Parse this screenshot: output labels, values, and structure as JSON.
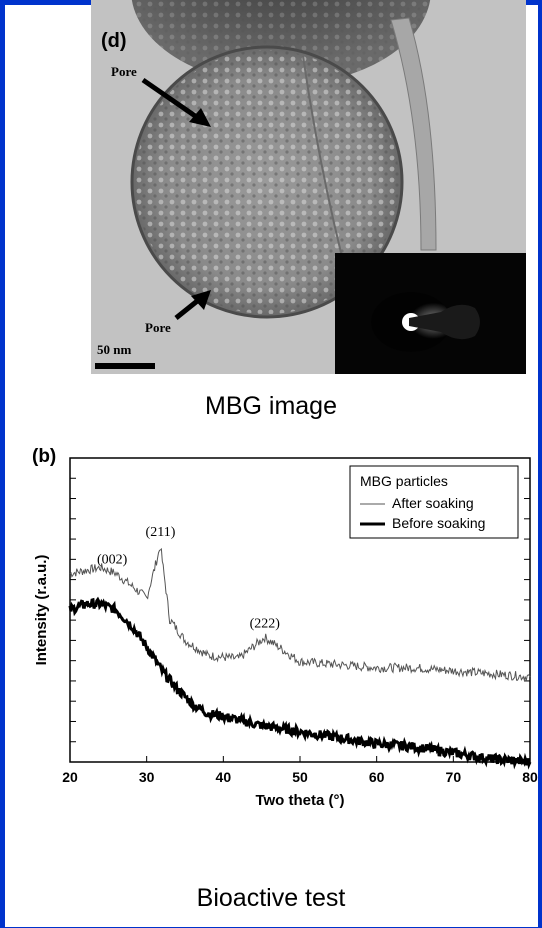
{
  "figure_top": {
    "panel_label": "(d)",
    "pore_label_top": "Pore",
    "pore_label_bottom": "Pore",
    "scale_bar": "50 nm",
    "caption": "MBG image"
  },
  "figure_bottom": {
    "panel_label": "(b)",
    "caption": "Bioactive test"
  },
  "chart_data": {
    "type": "line",
    "xlabel": "Two theta (°)",
    "ylabel": "Intensity (r.a.u.)",
    "xlim": [
      20,
      80
    ],
    "x_ticks": [
      20,
      30,
      40,
      50,
      60,
      70,
      80
    ],
    "y_ticks_labeled": false,
    "legend_title": "MBG particles",
    "legend_placement": "top-right",
    "peak_annotations": [
      {
        "label": "(002)",
        "x": 25.5
      },
      {
        "label": "(211)",
        "x": 31.8
      },
      {
        "label": "(222)",
        "x": 45.4
      }
    ],
    "series": [
      {
        "name": "After soaking",
        "style": "thin",
        "x": [
          20,
          22,
          24,
          26,
          28,
          30,
          31.8,
          33,
          35,
          38,
          42,
          45.4,
          50,
          55,
          60,
          65,
          70,
          75,
          80
        ],
        "y": [
          0.62,
          0.63,
          0.64,
          0.62,
          0.58,
          0.54,
          0.71,
          0.47,
          0.4,
          0.35,
          0.34,
          0.41,
          0.33,
          0.32,
          0.31,
          0.31,
          0.3,
          0.29,
          0.28
        ]
      },
      {
        "name": "Before soaking",
        "style": "thick",
        "x": [
          20,
          22,
          24,
          26,
          28,
          30,
          32,
          34,
          36,
          38,
          40,
          45,
          50,
          55,
          60,
          65,
          70,
          75,
          80
        ],
        "y": [
          0.5,
          0.52,
          0.52,
          0.5,
          0.45,
          0.38,
          0.3,
          0.24,
          0.19,
          0.16,
          0.15,
          0.12,
          0.1,
          0.08,
          0.06,
          0.05,
          0.03,
          0.01,
          0.0
        ]
      }
    ]
  }
}
